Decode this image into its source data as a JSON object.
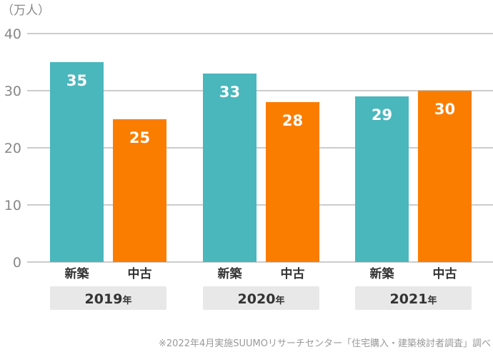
{
  "chart_data": {
    "type": "bar",
    "unit_label": "（万人）",
    "ylim": [
      0,
      40
    ],
    "yticks": [
      "0",
      "10",
      "20",
      "30",
      "40"
    ],
    "grid": true,
    "groups": [
      {
        "year": "2019",
        "year_suffix": "年"
      },
      {
        "year": "2020",
        "year_suffix": "年"
      },
      {
        "year": "2021",
        "year_suffix": "年"
      }
    ],
    "series": [
      {
        "name": "新築",
        "color": "#4ab7bd",
        "values": [
          35,
          33,
          29
        ],
        "value_labels": [
          "35",
          "33",
          "29"
        ]
      },
      {
        "name": "中古",
        "color": "#fb7d00",
        "values": [
          25,
          28,
          30
        ],
        "value_labels": [
          "25",
          "28",
          "30"
        ]
      }
    ],
    "source_note": "※2022年4月実施SUUMOリサーチセンター「住宅購入・建築検討者調査」調べ"
  }
}
